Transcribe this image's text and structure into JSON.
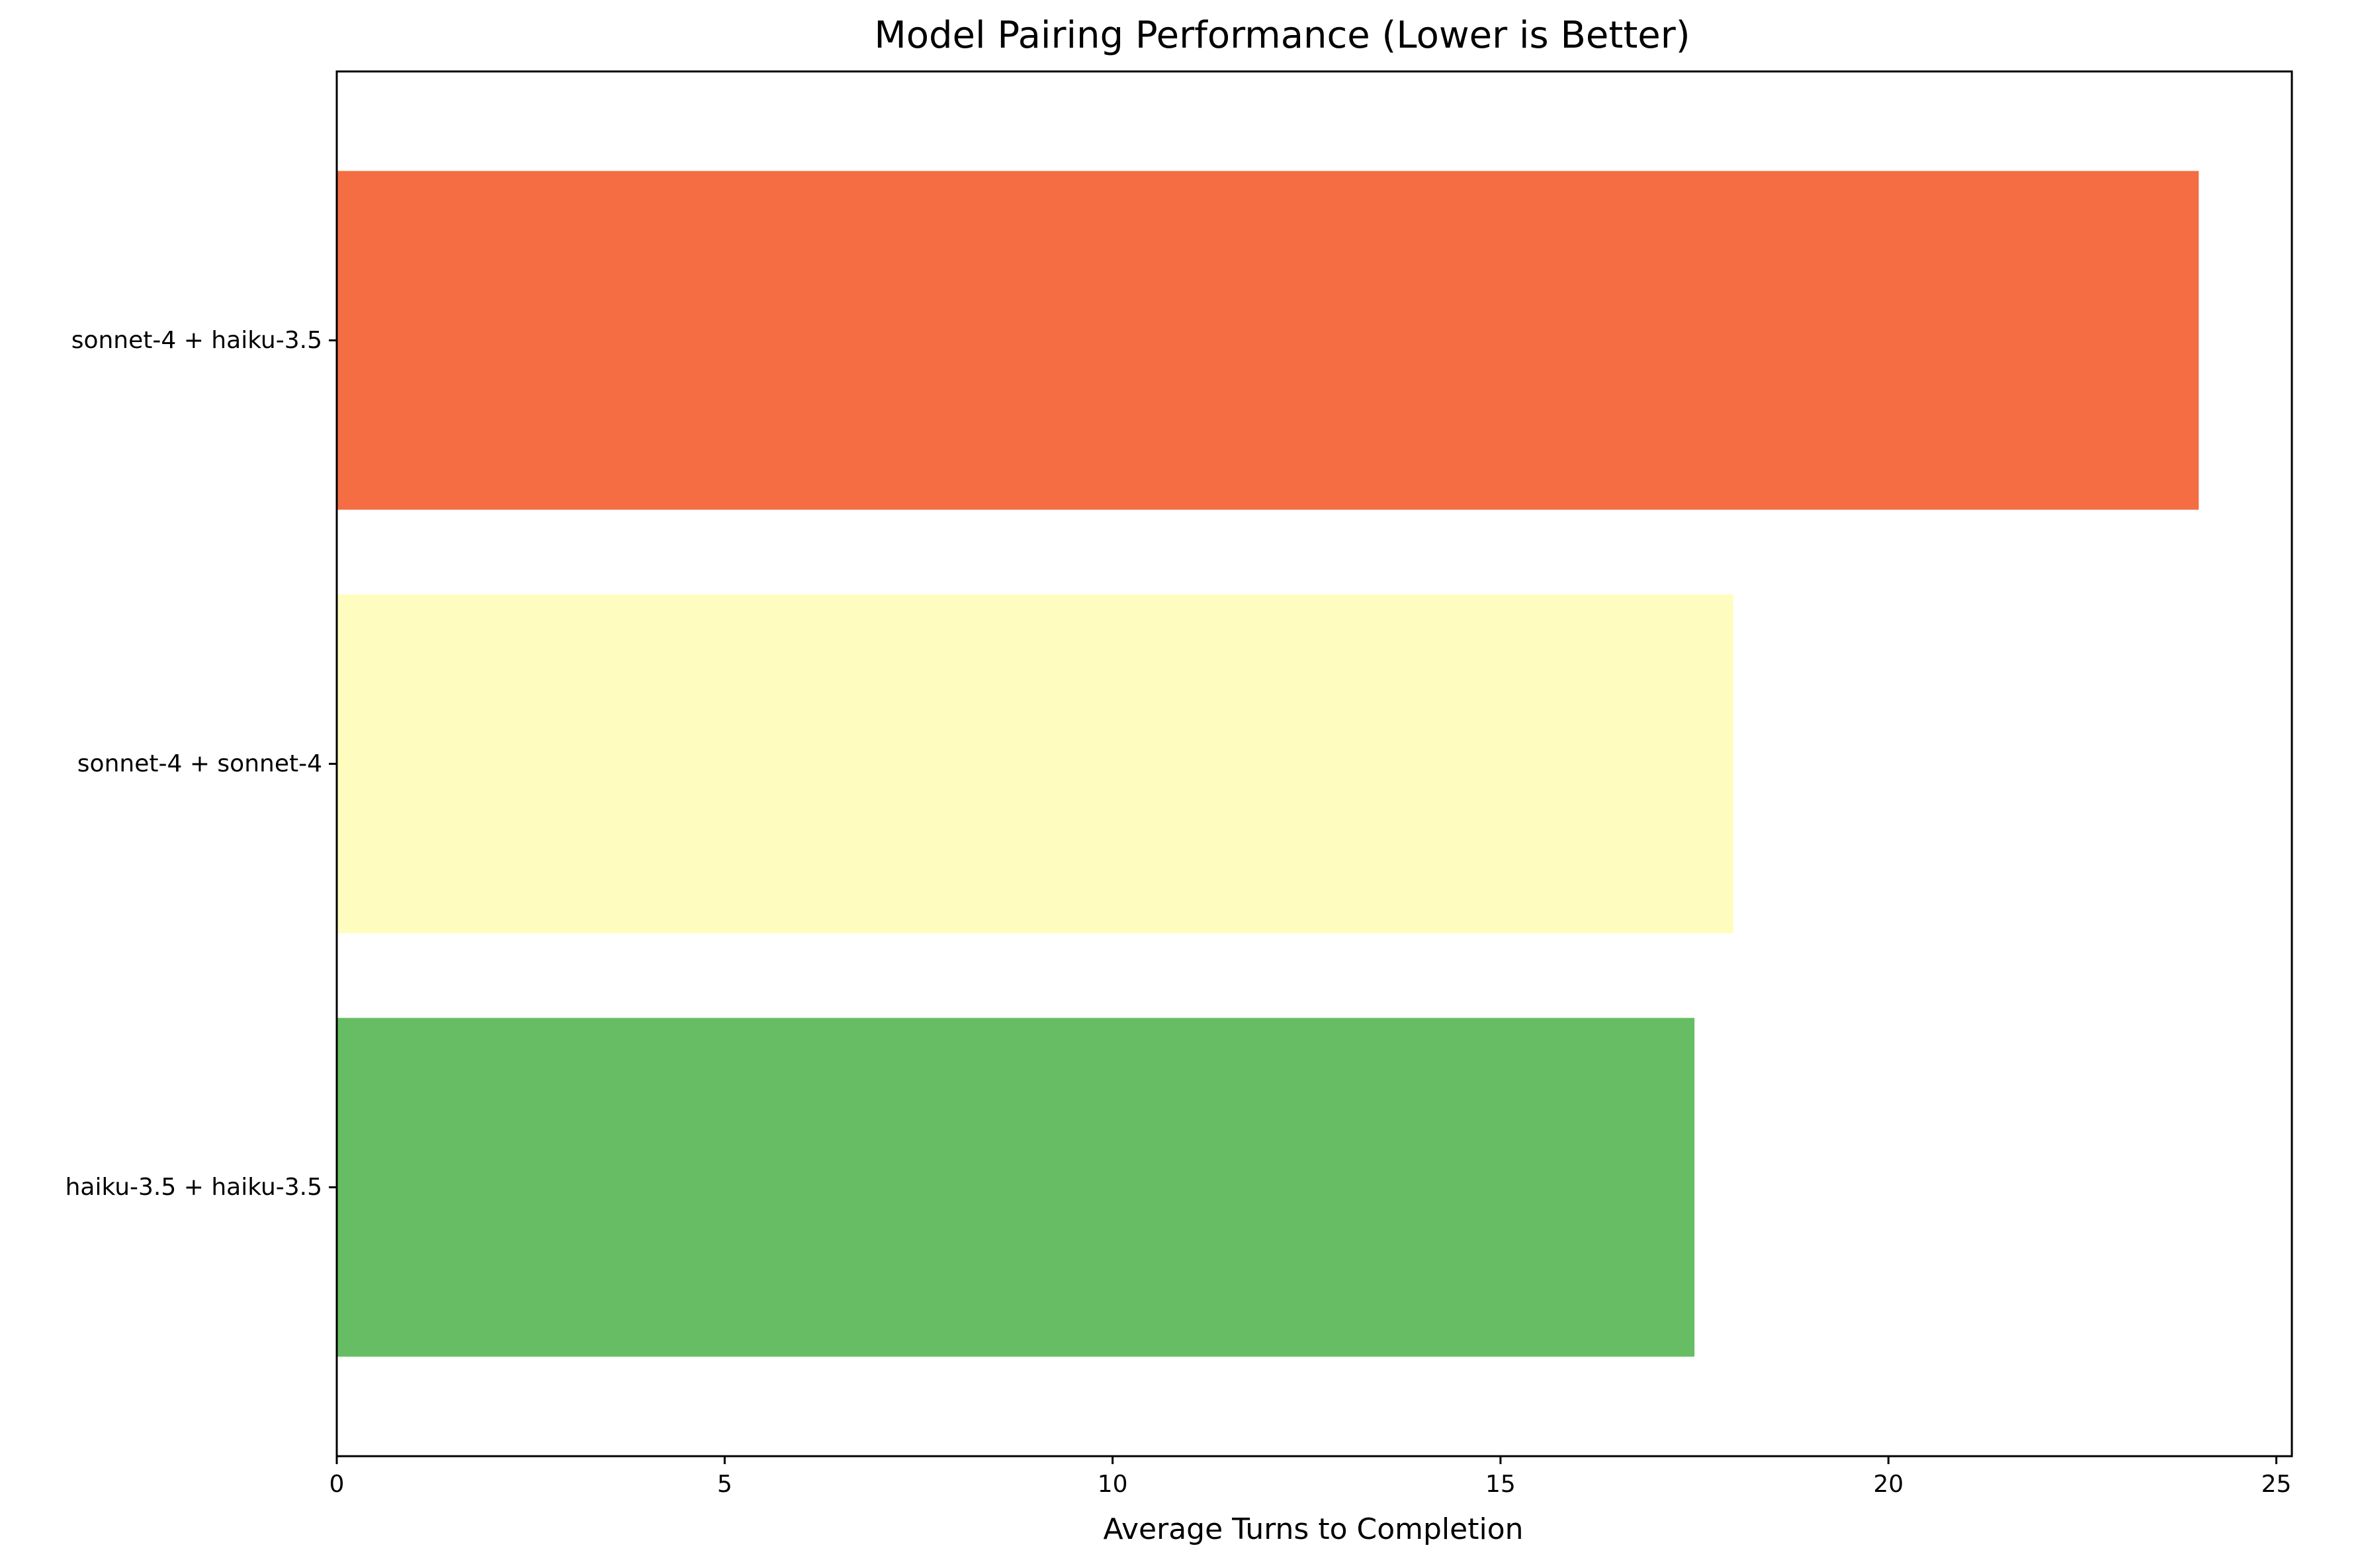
{
  "chart_data": {
    "type": "bar",
    "orientation": "horizontal",
    "title": "Model Pairing Performance (Lower is Better)",
    "xlabel": "Average Turns to Completion",
    "ylabel": "",
    "categories": [
      "haiku-3.5 + haiku-3.5",
      "sonnet-4 + sonnet-4",
      "sonnet-4 + haiku-3.5"
    ],
    "values": [
      17.5,
      18.0,
      24.0
    ],
    "colors": [
      "#66bd63",
      "#fefdbf",
      "#f46d43"
    ],
    "xlim": [
      0,
      25.2
    ],
    "xticks": [
      0,
      5,
      10,
      15,
      20,
      25
    ],
    "xtick_labels": [
      "0",
      "5",
      "10",
      "15",
      "20",
      "25"
    ],
    "grid": false,
    "legend": "none"
  }
}
